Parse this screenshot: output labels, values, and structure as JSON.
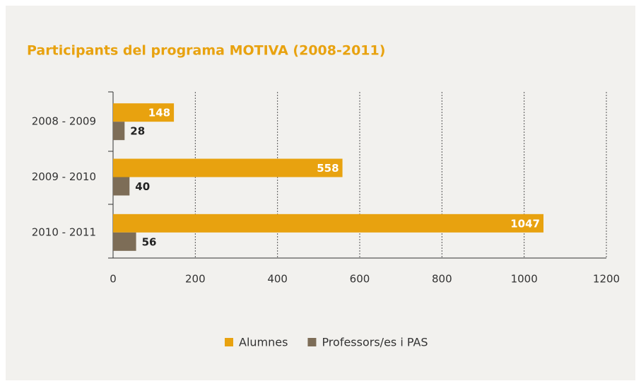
{
  "chart_data": {
    "type": "bar",
    "orientation": "horizontal",
    "title": "Participants del programa MOTIVA (2008-2011)",
    "categories": [
      "2008 - 2009",
      "2009 - 2010",
      "2010 - 2011"
    ],
    "series": [
      {
        "name": "Alumnes",
        "color": "#e8a20f",
        "values": [
          148,
          558,
          1047
        ]
      },
      {
        "name": "Professors/es i PAS",
        "color": "#7d6d57",
        "values": [
          28,
          40,
          56
        ]
      }
    ],
    "xlim": [
      0,
      1200
    ],
    "xticks": [
      0,
      200,
      400,
      600,
      800,
      1000,
      1200
    ],
    "grid": true,
    "legend": "bottom"
  }
}
